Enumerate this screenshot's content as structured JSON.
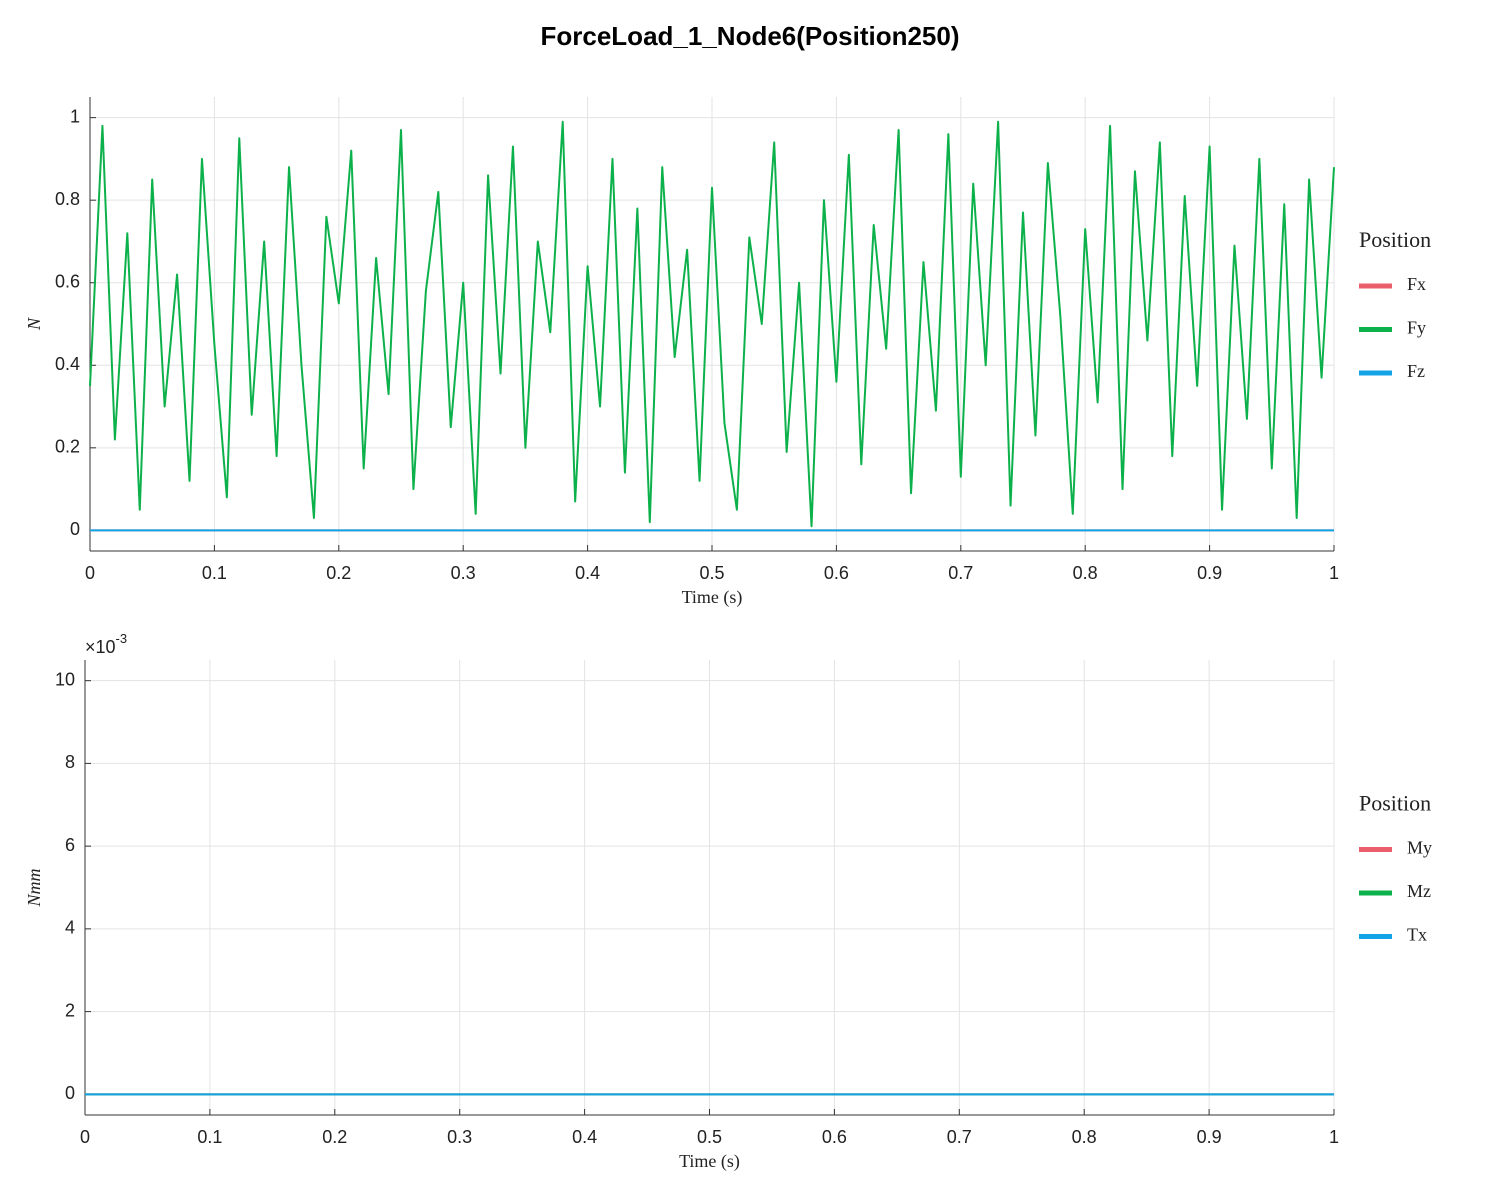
{
  "title": "ForceLoad_1_Node6(Position250)",
  "chart_data": [
    {
      "type": "line",
      "xlabel": "Time (s)",
      "ylabel": "N",
      "legend_title": "Position",
      "legend": "right",
      "grid": true,
      "xlim": [
        0,
        1
      ],
      "xticks": [
        0,
        0.1,
        0.2,
        0.3,
        0.4,
        0.5,
        0.6,
        0.7,
        0.8,
        0.9,
        1
      ],
      "ylim": [
        -0.05,
        1.05
      ],
      "yticks": [
        0,
        0.2,
        0.4,
        0.6,
        0.8,
        1
      ],
      "x": [
        0,
        0.01,
        0.02,
        0.03,
        0.04,
        0.05,
        0.06,
        0.07,
        0.08,
        0.09,
        0.1,
        0.11,
        0.12,
        0.13,
        0.14,
        0.15,
        0.16,
        0.17,
        0.18,
        0.19,
        0.2,
        0.21,
        0.22,
        0.23,
        0.24,
        0.25,
        0.26,
        0.27,
        0.28,
        0.29,
        0.3,
        0.31,
        0.32,
        0.33,
        0.34,
        0.35,
        0.36,
        0.37,
        0.38,
        0.39,
        0.4,
        0.41,
        0.42,
        0.43,
        0.44,
        0.45,
        0.46,
        0.47,
        0.48,
        0.49,
        0.5,
        0.51,
        0.52,
        0.53,
        0.54,
        0.55,
        0.56,
        0.57,
        0.58,
        0.59,
        0.6,
        0.61,
        0.62,
        0.63,
        0.64,
        0.65,
        0.66,
        0.67,
        0.68,
        0.69,
        0.7,
        0.71,
        0.72,
        0.73,
        0.74,
        0.75,
        0.76,
        0.77,
        0.78,
        0.79,
        0.8,
        0.81,
        0.82,
        0.83,
        0.84,
        0.85,
        0.86,
        0.87,
        0.88,
        0.89,
        0.9,
        0.91,
        0.92,
        0.93,
        0.94,
        0.95,
        0.96,
        0.97,
        0.98,
        0.99,
        1
      ],
      "series": [
        {
          "name": "Fx",
          "color": "#ea5f6b",
          "values": [
            0,
            0,
            0,
            0,
            0,
            0,
            0,
            0,
            0,
            0,
            0,
            0,
            0,
            0,
            0,
            0,
            0,
            0,
            0,
            0,
            0,
            0,
            0,
            0,
            0,
            0,
            0,
            0,
            0,
            0,
            0,
            0,
            0,
            0,
            0,
            0,
            0,
            0,
            0,
            0,
            0,
            0,
            0,
            0,
            0,
            0,
            0,
            0,
            0,
            0,
            0,
            0,
            0,
            0,
            0,
            0,
            0,
            0,
            0,
            0,
            0,
            0,
            0,
            0,
            0,
            0,
            0,
            0,
            0,
            0,
            0,
            0,
            0,
            0,
            0,
            0,
            0,
            0,
            0,
            0,
            0,
            0,
            0,
            0,
            0,
            0,
            0,
            0,
            0,
            0,
            0,
            0,
            0,
            0,
            0,
            0,
            0,
            0,
            0,
            0,
            0
          ]
        },
        {
          "name": "Fy",
          "color": "#0db14b",
          "values": [
            0.35,
            0.98,
            0.22,
            0.72,
            0.05,
            0.85,
            0.3,
            0.62,
            0.12,
            0.9,
            0.45,
            0.08,
            0.95,
            0.28,
            0.7,
            0.18,
            0.88,
            0.4,
            0.03,
            0.76,
            0.55,
            0.92,
            0.15,
            0.66,
            0.33,
            0.97,
            0.1,
            0.58,
            0.82,
            0.25,
            0.6,
            0.04,
            0.86,
            0.38,
            0.93,
            0.2,
            0.7,
            0.48,
            0.99,
            0.07,
            0.64,
            0.3,
            0.9,
            0.14,
            0.78,
            0.02,
            0.88,
            0.42,
            0.68,
            0.12,
            0.83,
            0.26,
            0.05,
            0.71,
            0.5,
            0.94,
            0.19,
            0.6,
            0.01,
            0.8,
            0.36,
            0.91,
            0.16,
            0.74,
            0.44,
            0.97,
            0.09,
            0.65,
            0.29,
            0.96,
            0.13,
            0.84,
            0.4,
            0.99,
            0.06,
            0.77,
            0.23,
            0.89,
            0.52,
            0.04,
            0.73,
            0.31,
            0.98,
            0.1,
            0.87,
            0.46,
            0.94,
            0.18,
            0.81,
            0.35,
            0.93,
            0.05,
            0.69,
            0.27,
            0.9,
            0.15,
            0.79,
            0.03,
            0.85,
            0.37,
            0.88
          ]
        },
        {
          "name": "Fz",
          "color": "#14a3e6",
          "values": [
            0,
            0,
            0,
            0,
            0,
            0,
            0,
            0,
            0,
            0,
            0,
            0,
            0,
            0,
            0,
            0,
            0,
            0,
            0,
            0,
            0,
            0,
            0,
            0,
            0,
            0,
            0,
            0,
            0,
            0,
            0,
            0,
            0,
            0,
            0,
            0,
            0,
            0,
            0,
            0,
            0,
            0,
            0,
            0,
            0,
            0,
            0,
            0,
            0,
            0,
            0,
            0,
            0,
            0,
            0,
            0,
            0,
            0,
            0,
            0,
            0,
            0,
            0,
            0,
            0,
            0,
            0,
            0,
            0,
            0,
            0,
            0,
            0,
            0,
            0,
            0,
            0,
            0,
            0,
            0,
            0,
            0,
            0,
            0,
            0,
            0,
            0,
            0,
            0,
            0,
            0,
            0,
            0,
            0,
            0,
            0,
            0,
            0,
            0,
            0,
            0
          ]
        }
      ]
    },
    {
      "type": "line",
      "xlabel": "Time (s)",
      "ylabel": "Nmm",
      "legend_title": "Position",
      "legend": "right",
      "grid": true,
      "y_multiplier": "×10",
      "y_multiplier_exp": "-3",
      "xlim": [
        0,
        1
      ],
      "xticks": [
        0,
        0.1,
        0.2,
        0.3,
        0.4,
        0.5,
        0.6,
        0.7,
        0.8,
        0.9,
        1
      ],
      "ylim": [
        -0.0005,
        0.0105
      ],
      "yticks": [
        {
          "value": 0,
          "label": "0"
        },
        {
          "value": 0.002,
          "label": "2"
        },
        {
          "value": 0.004,
          "label": "4"
        },
        {
          "value": 0.006,
          "label": "6"
        },
        {
          "value": 0.008,
          "label": "8"
        },
        {
          "value": 0.01,
          "label": "10"
        }
      ],
      "x": [
        0,
        1
      ],
      "series": [
        {
          "name": "My",
          "color": "#ea5f6b",
          "values": [
            0,
            0
          ]
        },
        {
          "name": "Mz",
          "color": "#0db14b",
          "values": [
            0,
            0
          ]
        },
        {
          "name": "Tx",
          "color": "#14a3e6",
          "values": [
            0,
            0
          ]
        }
      ]
    }
  ]
}
